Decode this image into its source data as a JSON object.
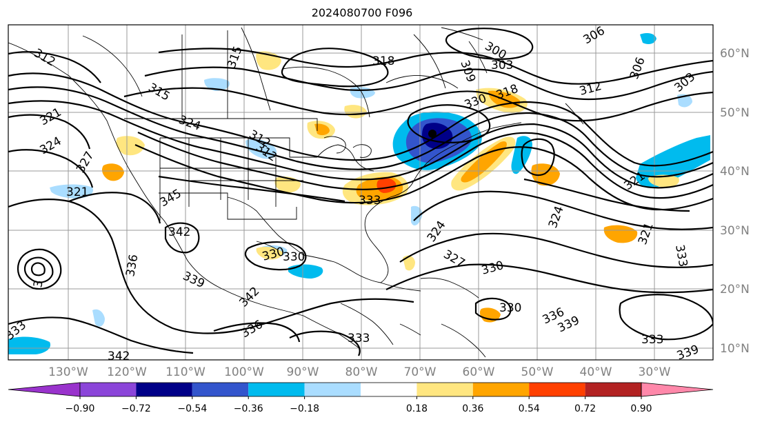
{
  "title": "2024080700 F096",
  "longitude_labels": [
    "130°W",
    "120°W",
    "110°W",
    "100°W",
    "90°W",
    "80°W",
    "70°W",
    "60°W",
    "50°W",
    "40°W",
    "30°W"
  ],
  "latitude_labels": [
    "60°N",
    "50°N",
    "40°N",
    "30°N",
    "20°N",
    "10°N"
  ],
  "colorbar": {
    "tick_labels": [
      "−0.90",
      "−0.72",
      "−0.54",
      "−0.36",
      "−0.18",
      "0.18",
      "0.36",
      "0.54",
      "0.72",
      "0.90"
    ],
    "colors": [
      "#9933cc",
      "#8b45d9",
      "#000088",
      "#3355cc",
      "#00bbee",
      "#aaddff",
      "#ffffff",
      "#ffe680",
      "#ffa500",
      "#ff4000",
      "#b22222",
      "#ff88aa"
    ]
  },
  "contour_labels": [
    {
      "text": "318"
    },
    {
      "text": "300"
    },
    {
      "text": "306"
    },
    {
      "text": "303"
    },
    {
      "text": "306"
    },
    {
      "text": "309"
    },
    {
      "text": "312"
    },
    {
      "text": "303"
    },
    {
      "text": "318"
    },
    {
      "text": "330"
    },
    {
      "text": "315"
    },
    {
      "text": "315"
    },
    {
      "text": "312"
    },
    {
      "text": "321"
    },
    {
      "text": "324"
    },
    {
      "text": "324"
    },
    {
      "text": "312"
    },
    {
      "text": "327"
    },
    {
      "text": "321"
    },
    {
      "text": "345"
    },
    {
      "text": "333"
    },
    {
      "text": "342"
    },
    {
      "text": "336"
    },
    {
      "text": "339"
    },
    {
      "text": "330"
    },
    {
      "text": "330"
    },
    {
      "text": "342"
    },
    {
      "text": "336"
    },
    {
      "text": "333"
    },
    {
      "text": "330"
    },
    {
      "text": "336"
    },
    {
      "text": "339"
    },
    {
      "text": "333"
    },
    {
      "text": "342"
    },
    {
      "text": "324"
    },
    {
      "text": "327"
    },
    {
      "text": "330"
    },
    {
      "text": "324"
    },
    {
      "text": "321"
    },
    {
      "text": "333"
    },
    {
      "text": "321"
    },
    {
      "text": "333"
    },
    {
      "text": "339"
    },
    {
      "text": "312"
    },
    {
      "text": "3"
    }
  ],
  "colors": {
    "frame": "#000000",
    "grid": "#999999",
    "tick_label": "#808080"
  }
}
